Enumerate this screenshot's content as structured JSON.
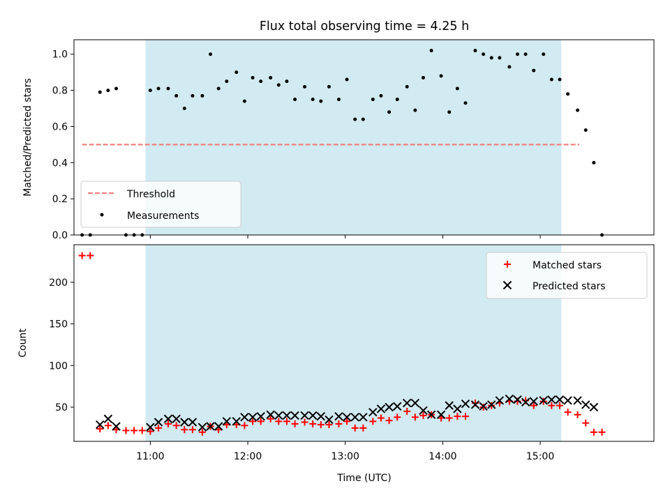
{
  "chart_data": [
    {
      "type": "scatter",
      "title": "Flux total observing time = 4.25 h",
      "ylabel": "Matched/Predicted stars",
      "xlabel": "",
      "ylim": [
        0,
        1.08
      ],
      "yticks": [
        0.0,
        0.2,
        0.4,
        0.6,
        0.8,
        1.0
      ],
      "ytick_labels": [
        "0.0",
        "0.2",
        "0.4",
        "0.6",
        "0.8",
        "1.0"
      ],
      "xticks": [
        "11:00",
        "12:00",
        "13:00",
        "14:00",
        "15:00"
      ],
      "xlim": [
        "10:13",
        "16:10"
      ],
      "shaded_interval": [
        "10:57",
        "15:13"
      ],
      "shade_color": "#add8e6",
      "grid": false,
      "legend_position": "lower-left",
      "threshold": {
        "name": "Threshold",
        "y": 0.5,
        "x_range": [
          "10:18",
          "15:24"
        ],
        "color": "#f08080",
        "style": "dashed"
      },
      "series": [
        {
          "name": "Measurements",
          "color": "#000000",
          "marker": "dot",
          "points": [
            [
              "10:18",
              0.0
            ],
            [
              "10:23",
              0.0
            ],
            [
              "10:29",
              0.79
            ],
            [
              "10:34",
              0.8
            ],
            [
              "10:39",
              0.81
            ],
            [
              "10:45",
              0.0
            ],
            [
              "10:50",
              0.0
            ],
            [
              "10:55",
              0.0
            ],
            [
              "11:00",
              0.8
            ],
            [
              "11:05",
              0.81
            ],
            [
              "11:11",
              0.81
            ],
            [
              "11:16",
              0.77
            ],
            [
              "11:21",
              0.7
            ],
            [
              "11:26",
              0.77
            ],
            [
              "11:32",
              0.77
            ],
            [
              "11:37",
              1.0
            ],
            [
              "11:42",
              0.81
            ],
            [
              "11:47",
              0.85
            ],
            [
              "11:53",
              0.9
            ],
            [
              "11:58",
              0.74
            ],
            [
              "12:03",
              0.87
            ],
            [
              "12:08",
              0.85
            ],
            [
              "12:14",
              0.87
            ],
            [
              "12:19",
              0.83
            ],
            [
              "12:24",
              0.85
            ],
            [
              "12:29",
              0.75
            ],
            [
              "12:35",
              0.82
            ],
            [
              "12:40",
              0.75
            ],
            [
              "12:45",
              0.74
            ],
            [
              "12:50",
              0.82
            ],
            [
              "12:56",
              0.75
            ],
            [
              "13:01",
              0.86
            ],
            [
              "13:06",
              0.64
            ],
            [
              "13:11",
              0.64
            ],
            [
              "13:17",
              0.75
            ],
            [
              "13:22",
              0.77
            ],
            [
              "13:27",
              0.68
            ],
            [
              "13:32",
              0.75
            ],
            [
              "13:38",
              0.82
            ],
            [
              "13:43",
              0.69
            ],
            [
              "13:48",
              0.87
            ],
            [
              "13:53",
              1.02
            ],
            [
              "13:59",
              0.88
            ],
            [
              "14:04",
              0.68
            ],
            [
              "14:09",
              0.81
            ],
            [
              "14:14",
              0.73
            ],
            [
              "14:20",
              1.02
            ],
            [
              "14:25",
              1.0
            ],
            [
              "14:30",
              0.98
            ],
            [
              "14:35",
              0.98
            ],
            [
              "14:41",
              0.93
            ],
            [
              "14:46",
              1.0
            ],
            [
              "14:51",
              1.0
            ],
            [
              "14:56",
              0.91
            ],
            [
              "15:02",
              1.0
            ],
            [
              "15:07",
              0.86
            ],
            [
              "15:12",
              0.86
            ],
            [
              "15:17",
              0.78
            ],
            [
              "15:23",
              0.69
            ],
            [
              "15:28",
              0.58
            ],
            [
              "15:33",
              0.4
            ],
            [
              "15:38",
              0.0
            ]
          ]
        }
      ]
    },
    {
      "type": "scatter",
      "title": "",
      "ylabel": "Count",
      "xlabel": "Time (UTC)",
      "ylim": [
        9,
        245
      ],
      "yticks": [
        50,
        100,
        150,
        200
      ],
      "ytick_labels": [
        "50",
        "100",
        "150",
        "200"
      ],
      "xticks": [
        "11:00",
        "12:00",
        "13:00",
        "14:00",
        "15:00"
      ],
      "xlim": [
        "10:13",
        "16:10"
      ],
      "shaded_interval": [
        "10:57",
        "15:13"
      ],
      "shade_color": "#add8e6",
      "grid": false,
      "legend_position": "upper-right",
      "series": [
        {
          "name": "Matched stars",
          "color": "#ff0000",
          "marker": "plus",
          "points": [
            [
              "10:18",
              232
            ],
            [
              "10:23",
              232
            ],
            [
              "10:29",
              24
            ],
            [
              "10:34",
              28
            ],
            [
              "10:39",
              23
            ],
            [
              "10:45",
              22
            ],
            [
              "10:50",
              22
            ],
            [
              "10:55",
              22
            ],
            [
              "11:00",
              21
            ],
            [
              "11:05",
              25
            ],
            [
              "11:11",
              30
            ],
            [
              "11:16",
              28
            ],
            [
              "11:21",
              23
            ],
            [
              "11:26",
              23
            ],
            [
              "11:32",
              20
            ],
            [
              "11:37",
              27
            ],
            [
              "11:42",
              23
            ],
            [
              "11:47",
              29
            ],
            [
              "11:53",
              29
            ],
            [
              "11:58",
              28
            ],
            [
              "12:03",
              33
            ],
            [
              "12:08",
              33
            ],
            [
              "12:14",
              36
            ],
            [
              "12:19",
              33
            ],
            [
              "12:24",
              33
            ],
            [
              "12:29",
              30
            ],
            [
              "12:35",
              32
            ],
            [
              "12:40",
              30
            ],
            [
              "12:45",
              29
            ],
            [
              "12:50",
              29
            ],
            [
              "12:56",
              30
            ],
            [
              "13:01",
              33
            ],
            [
              "13:06",
              25
            ],
            [
              "13:11",
              25
            ],
            [
              "13:17",
              33
            ],
            [
              "13:22",
              37
            ],
            [
              "13:27",
              34
            ],
            [
              "13:32",
              38
            ],
            [
              "13:38",
              45
            ],
            [
              "13:43",
              38
            ],
            [
              "13:48",
              40
            ],
            [
              "13:53",
              41
            ],
            [
              "13:59",
              37
            ],
            [
              "14:04",
              37
            ],
            [
              "14:09",
              39
            ],
            [
              "14:14",
              39
            ],
            [
              "14:20",
              55
            ],
            [
              "14:25",
              50
            ],
            [
              "14:30",
              52
            ],
            [
              "14:35",
              55
            ],
            [
              "14:41",
              57
            ],
            [
              "14:46",
              57
            ],
            [
              "14:51",
              58
            ],
            [
              "14:56",
              52
            ],
            [
              "15:02",
              57
            ],
            [
              "15:07",
              52
            ],
            [
              "15:12",
              52
            ],
            [
              "15:17",
              44
            ],
            [
              "15:23",
              41
            ],
            [
              "15:28",
              31
            ],
            [
              "15:33",
              20
            ],
            [
              "15:38",
              20
            ]
          ]
        },
        {
          "name": "Predicted stars",
          "color": "#000000",
          "marker": "x",
          "points": [
            [
              "10:29",
              29
            ],
            [
              "10:34",
              36
            ],
            [
              "10:39",
              27
            ],
            [
              "11:00",
              26
            ],
            [
              "11:05",
              32
            ],
            [
              "11:11",
              36
            ],
            [
              "11:16",
              36
            ],
            [
              "11:21",
              32
            ],
            [
              "11:26",
              32
            ],
            [
              "11:32",
              26
            ],
            [
              "11:37",
              27
            ],
            [
              "11:42",
              27
            ],
            [
              "11:47",
              33
            ],
            [
              "11:53",
              33
            ],
            [
              "11:58",
              38
            ],
            [
              "12:03",
              38
            ],
            [
              "12:08",
              39
            ],
            [
              "12:14",
              41
            ],
            [
              "12:19",
              40
            ],
            [
              "12:24",
              40
            ],
            [
              "12:29",
              40
            ],
            [
              "12:35",
              40
            ],
            [
              "12:40",
              40
            ],
            [
              "12:45",
              39
            ],
            [
              "12:50",
              35
            ],
            [
              "12:56",
              39
            ],
            [
              "13:01",
              38
            ],
            [
              "13:06",
              38
            ],
            [
              "13:11",
              38
            ],
            [
              "13:17",
              44
            ],
            [
              "13:22",
              48
            ],
            [
              "13:27",
              50
            ],
            [
              "13:32",
              51
            ],
            [
              "13:38",
              55
            ],
            [
              "13:43",
              55
            ],
            [
              "13:48",
              46
            ],
            [
              "13:53",
              41
            ],
            [
              "13:59",
              41
            ],
            [
              "14:04",
              52
            ],
            [
              "14:09",
              48
            ],
            [
              "14:14",
              54
            ],
            [
              "14:20",
              53
            ],
            [
              "14:25",
              51
            ],
            [
              "14:30",
              53
            ],
            [
              "14:35",
              58
            ],
            [
              "14:41",
              60
            ],
            [
              "14:46",
              59
            ],
            [
              "14:51",
              56
            ],
            [
              "14:56",
              57
            ],
            [
              "15:02",
              58
            ],
            [
              "15:07",
              59
            ],
            [
              "15:12",
              59
            ],
            [
              "15:17",
              58
            ],
            [
              "15:23",
              58
            ],
            [
              "15:28",
              53
            ],
            [
              "15:33",
              50
            ]
          ]
        }
      ]
    }
  ]
}
